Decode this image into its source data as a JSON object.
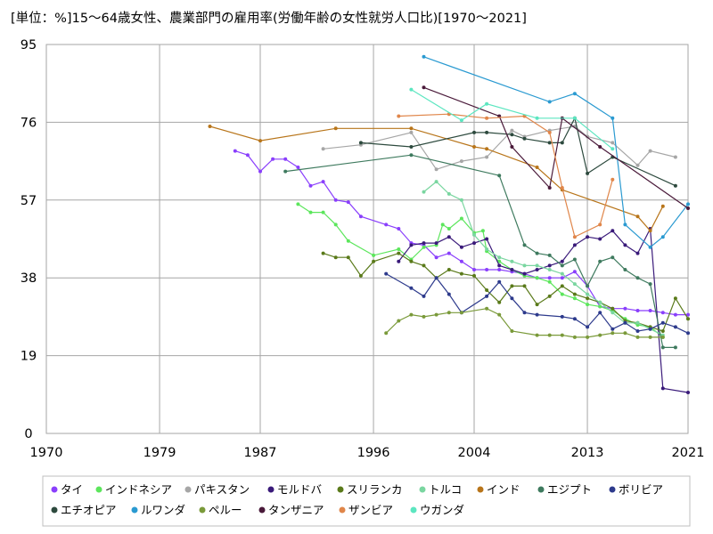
{
  "chart_data": {
    "type": "line",
    "title": "[単位：%]15～64歳女性、農業部門の雇用率(労働年齢の女性就労人口比)[1970～2021]",
    "xlabel": "",
    "ylabel": "",
    "xlim": [
      1970,
      2021
    ],
    "ylim": [
      0,
      95
    ],
    "x_ticks": [
      "1970",
      "1979",
      "1987",
      "1996",
      "2004",
      "2013",
      "2021"
    ],
    "y_ticks": [
      "0",
      "19",
      "38",
      "57",
      "76",
      "95"
    ],
    "grid": true,
    "legend_position": "bottom",
    "series": [
      {
        "name": "タイ",
        "color": "#8a3ffc",
        "points": [
          [
            1985,
            69
          ],
          [
            1986,
            68
          ],
          [
            1987,
            64
          ],
          [
            1988,
            67
          ],
          [
            1989,
            67
          ],
          [
            1990,
            65
          ],
          [
            1991,
            60.5
          ],
          [
            1992,
            61.5
          ],
          [
            1993,
            57
          ],
          [
            1994,
            56.5
          ],
          [
            1995,
            53
          ],
          [
            1997,
            51
          ],
          [
            1998,
            50
          ],
          [
            1999,
            46.5
          ],
          [
            2000,
            46
          ],
          [
            2001,
            43
          ],
          [
            2002,
            44
          ],
          [
            2003,
            42
          ],
          [
            2004,
            40
          ],
          [
            2005,
            40
          ],
          [
            2006,
            40
          ],
          [
            2007,
            39.5
          ],
          [
            2008,
            39
          ],
          [
            2009,
            38
          ],
          [
            2010,
            38
          ],
          [
            2011,
            38
          ],
          [
            2012,
            39.5
          ],
          [
            2013,
            36
          ],
          [
            2014,
            31
          ],
          [
            2015,
            30.5
          ],
          [
            2016,
            30.5
          ],
          [
            2017,
            30
          ],
          [
            2018,
            30
          ],
          [
            2019,
            29.5
          ],
          [
            2020,
            29
          ],
          [
            2021,
            29
          ]
        ]
      },
      {
        "name": "インドネシア",
        "color": "#5ce65c",
        "points": [
          [
            1990,
            56
          ],
          [
            1991,
            54
          ],
          [
            1992,
            54
          ],
          [
            1993,
            51
          ],
          [
            1994,
            47
          ],
          [
            1996,
            43.5
          ],
          [
            1998,
            45
          ],
          [
            1999,
            42.5
          ],
          [
            2000,
            45.5
          ],
          [
            2001,
            46
          ],
          [
            2001.5,
            51
          ],
          [
            2002,
            50
          ],
          [
            2003,
            52.5
          ],
          [
            2004,
            49
          ],
          [
            2004.7,
            49.5
          ],
          [
            2005,
            44.5
          ],
          [
            2006,
            42
          ],
          [
            2007,
            40
          ],
          [
            2008,
            38.5
          ],
          [
            2009,
            38
          ],
          [
            2010,
            37
          ],
          [
            2011,
            34
          ],
          [
            2012,
            33
          ],
          [
            2013,
            31.5
          ],
          [
            2014,
            31
          ],
          [
            2015,
            30
          ],
          [
            2016,
            28
          ],
          [
            2017,
            26.5
          ],
          [
            2018,
            26
          ],
          [
            2019,
            23.5
          ]
        ]
      },
      {
        "name": "パキスタン",
        "color": "#a6a6a6",
        "points": [
          [
            1992,
            69.5
          ],
          [
            1995,
            70.5
          ],
          [
            1999,
            73.5
          ],
          [
            2001,
            64.5
          ],
          [
            2003,
            66.5
          ],
          [
            2005,
            67.5
          ],
          [
            2007,
            74
          ],
          [
            2008,
            72.5
          ],
          [
            2010,
            74
          ],
          [
            2012,
            75
          ],
          [
            2013,
            72.5
          ],
          [
            2015,
            71
          ],
          [
            2017,
            65.5
          ],
          [
            2018,
            69
          ],
          [
            2020,
            67.5
          ]
        ]
      },
      {
        "name": "モルドバ",
        "color": "#3a1a7a",
        "points": [
          [
            1998,
            42
          ],
          [
            1999,
            46
          ],
          [
            2000,
            46.5
          ],
          [
            2001,
            46.5
          ],
          [
            2002,
            48
          ],
          [
            2003,
            45.5
          ],
          [
            2004,
            46.5
          ],
          [
            2005,
            47.5
          ],
          [
            2006,
            41
          ],
          [
            2007,
            40
          ],
          [
            2008,
            39
          ],
          [
            2009,
            40
          ],
          [
            2010,
            41
          ],
          [
            2011,
            42
          ],
          [
            2012,
            46
          ],
          [
            2013,
            48
          ],
          [
            2014,
            47.5
          ],
          [
            2015,
            49.5
          ],
          [
            2016,
            46
          ],
          [
            2017,
            44
          ],
          [
            2018,
            50
          ],
          [
            2019,
            11
          ],
          [
            2021,
            10
          ]
        ]
      },
      {
        "name": "スリランカ",
        "color": "#5a7a1a",
        "points": [
          [
            1992,
            44
          ],
          [
            1993,
            43
          ],
          [
            1994,
            43
          ],
          [
            1995,
            38.5
          ],
          [
            1996,
            42
          ],
          [
            1998,
            44
          ],
          [
            1999,
            42
          ],
          [
            2000,
            41
          ],
          [
            2001,
            38
          ],
          [
            2002,
            40
          ],
          [
            2003,
            39
          ],
          [
            2004,
            38.5
          ],
          [
            2005,
            35
          ],
          [
            2006,
            32
          ],
          [
            2007,
            36
          ],
          [
            2008,
            36
          ],
          [
            2009,
            31.5
          ],
          [
            2010,
            33.5
          ],
          [
            2011,
            36
          ],
          [
            2012,
            34
          ],
          [
            2013,
            33
          ],
          [
            2014,
            32
          ],
          [
            2015,
            30.5
          ],
          [
            2016,
            27.5
          ],
          [
            2017,
            27
          ],
          [
            2018,
            26
          ],
          [
            2019,
            25
          ],
          [
            2020,
            33
          ],
          [
            2021,
            28
          ]
        ]
      },
      {
        "name": "トルコ",
        "color": "#7ad6a0",
        "points": [
          [
            2000,
            59
          ],
          [
            2001,
            61.5
          ],
          [
            2002,
            58.5
          ],
          [
            2003,
            57
          ],
          [
            2004,
            48.5
          ],
          [
            2005,
            45
          ],
          [
            2006,
            43
          ],
          [
            2007,
            42
          ],
          [
            2008,
            41
          ],
          [
            2009,
            41
          ],
          [
            2010,
            40
          ],
          [
            2011,
            39
          ],
          [
            2012,
            36.5
          ],
          [
            2013,
            34
          ],
          [
            2014,
            32
          ],
          [
            2015,
            29.5
          ],
          [
            2016,
            27
          ],
          [
            2017,
            27
          ],
          [
            2018,
            25.5
          ],
          [
            2019,
            24
          ]
        ]
      },
      {
        "name": "インド",
        "color": "#b8751a",
        "points": [
          [
            1983,
            75
          ],
          [
            1987,
            71.5
          ],
          [
            1993,
            74.5
          ],
          [
            1999,
            74.5
          ],
          [
            2004,
            70
          ],
          [
            2005,
            69.5
          ],
          [
            2009,
            65
          ],
          [
            2011,
            59.5
          ],
          [
            2017,
            53
          ],
          [
            2018,
            49.5
          ],
          [
            2019,
            55.5
          ]
        ]
      },
      {
        "name": "エジプト",
        "color": "#3e7a5e",
        "points": [
          [
            1989,
            64
          ],
          [
            1999,
            68
          ],
          [
            2006,
            63
          ],
          [
            2008,
            46
          ],
          [
            2009,
            44
          ],
          [
            2010,
            43.5
          ],
          [
            2011,
            41
          ],
          [
            2012,
            42.5
          ],
          [
            2013,
            36
          ],
          [
            2014,
            42
          ],
          [
            2015,
            43
          ],
          [
            2016,
            40
          ],
          [
            2017,
            38
          ],
          [
            2018,
            36.5
          ],
          [
            2019,
            21
          ],
          [
            2020,
            21
          ]
        ]
      },
      {
        "name": "ボリビア",
        "color": "#2d3a8c",
        "points": [
          [
            1997,
            39
          ],
          [
            1999,
            35.5
          ],
          [
            2000,
            33.5
          ],
          [
            2001,
            38
          ],
          [
            2002,
            34
          ],
          [
            2003,
            29.5
          ],
          [
            2005,
            33.5
          ],
          [
            2006,
            37
          ],
          [
            2007,
            33
          ],
          [
            2008,
            29.5
          ],
          [
            2009,
            29
          ],
          [
            2011,
            28.5
          ],
          [
            2012,
            28
          ],
          [
            2013,
            26
          ],
          [
            2014,
            29.5
          ],
          [
            2015,
            25.5
          ],
          [
            2016,
            27
          ],
          [
            2017,
            25
          ],
          [
            2018,
            25.5
          ],
          [
            2019,
            27
          ],
          [
            2020,
            26
          ],
          [
            2021,
            24.5
          ]
        ]
      },
      {
        "name": "エチオピア",
        "color": "#2d4a3e",
        "points": [
          [
            1995,
            71
          ],
          [
            1999,
            70
          ],
          [
            2004,
            73.5
          ],
          [
            2005,
            73.5
          ],
          [
            2007,
            73
          ],
          [
            2008,
            72
          ],
          [
            2010,
            71
          ],
          [
            2011,
            71
          ],
          [
            2012,
            77
          ],
          [
            2013,
            63.5
          ],
          [
            2015,
            67.5
          ],
          [
            2020,
            60.5
          ]
        ]
      },
      {
        "name": "ルワンダ",
        "color": "#2a9ad1",
        "points": [
          [
            2000,
            92
          ],
          [
            2010,
            81
          ],
          [
            2012,
            83
          ],
          [
            2015,
            77
          ],
          [
            2016,
            51
          ],
          [
            2018,
            45.5
          ],
          [
            2019,
            48
          ],
          [
            2021,
            56
          ]
        ]
      },
      {
        "name": "ペルー",
        "color": "#7a9a3a",
        "points": [
          [
            1997,
            24.5
          ],
          [
            1998,
            27.5
          ],
          [
            1999,
            29
          ],
          [
            2000,
            28.5
          ],
          [
            2001,
            29
          ],
          [
            2002,
            29.5
          ],
          [
            2003,
            29.5
          ],
          [
            2005,
            30.5
          ],
          [
            2006,
            29
          ],
          [
            2007,
            25
          ],
          [
            2009,
            24
          ],
          [
            2010,
            24
          ],
          [
            2011,
            24
          ],
          [
            2012,
            23.5
          ],
          [
            2013,
            23.5
          ],
          [
            2014,
            24
          ],
          [
            2015,
            24.5
          ],
          [
            2016,
            24.5
          ],
          [
            2017,
            23.5
          ],
          [
            2018,
            23.5
          ],
          [
            2019,
            23.5
          ]
        ]
      },
      {
        "name": "タンザニア",
        "color": "#4a1a3a",
        "points": [
          [
            2000,
            84.5
          ],
          [
            2006,
            77.5
          ],
          [
            2007,
            70
          ],
          [
            2010,
            60
          ],
          [
            2011,
            77
          ],
          [
            2014,
            70
          ],
          [
            2021,
            55
          ]
        ]
      },
      {
        "name": "ザンビア",
        "color": "#e0864a",
        "points": [
          [
            1998,
            77.5
          ],
          [
            2002,
            78
          ],
          [
            2005,
            77
          ],
          [
            2008,
            77.5
          ],
          [
            2010,
            73.5
          ],
          [
            2011,
            60
          ],
          [
            2012,
            48
          ],
          [
            2014,
            51
          ],
          [
            2015,
            62
          ]
        ]
      },
      {
        "name": "ウガンダ",
        "color": "#5ce6c0",
        "points": [
          [
            1999,
            84
          ],
          [
            2003,
            76.5
          ],
          [
            2005,
            80.5
          ],
          [
            2009,
            77
          ],
          [
            2012,
            77
          ],
          [
            2015,
            69.5
          ]
        ]
      }
    ]
  }
}
